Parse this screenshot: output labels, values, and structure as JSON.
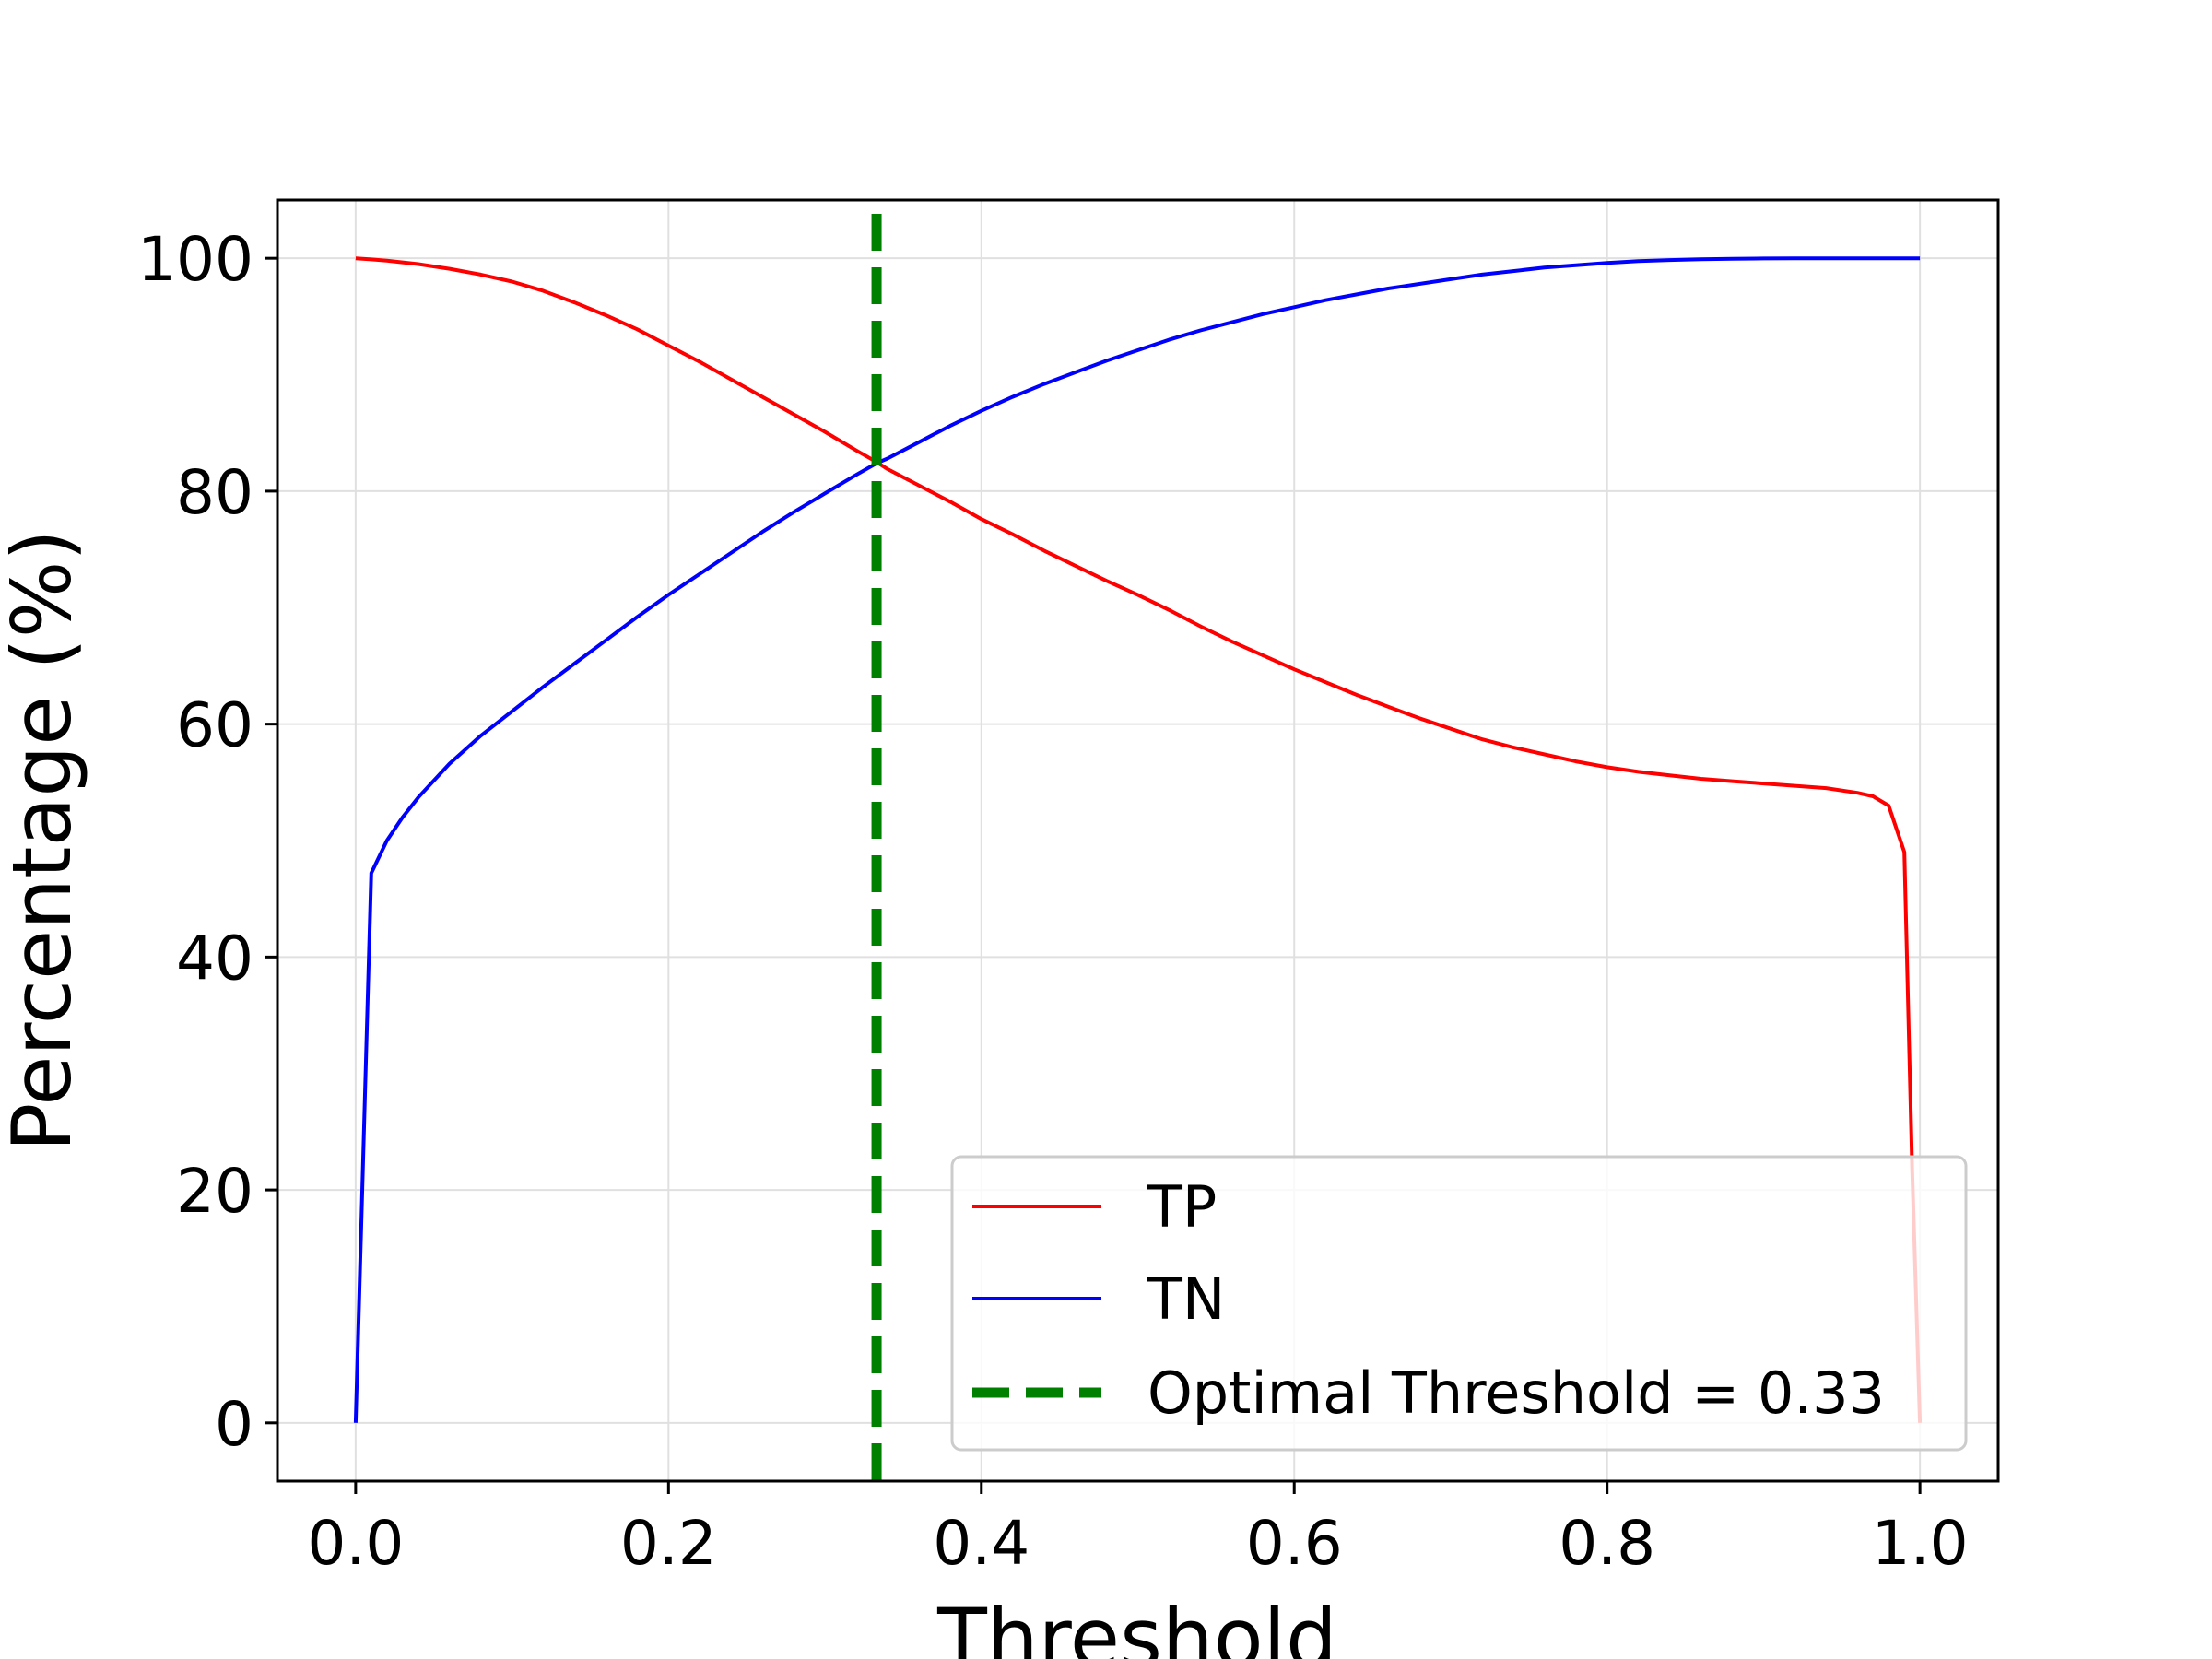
{
  "chart_data": {
    "type": "line",
    "title": "",
    "xlabel": "Threshold",
    "ylabel": "Percentage (%)",
    "xlim": [
      -0.05,
      1.05
    ],
    "ylim": [
      -5,
      105
    ],
    "xticks": [
      "0.0",
      "0.2",
      "0.4",
      "0.6",
      "0.8",
      "1.0"
    ],
    "yticks": [
      "0",
      "20",
      "40",
      "60",
      "80",
      "100"
    ],
    "grid": true,
    "legend_position": "lower-right",
    "series": [
      {
        "name": "TP",
        "color": "#ff0000",
        "x": [
          0.0,
          0.01,
          0.02,
          0.04,
          0.06,
          0.08,
          0.1,
          0.12,
          0.14,
          0.16,
          0.18,
          0.2,
          0.22,
          0.24,
          0.26,
          0.28,
          0.3,
          0.32,
          0.333,
          0.34,
          0.36,
          0.38,
          0.4,
          0.42,
          0.44,
          0.46,
          0.48,
          0.5,
          0.52,
          0.54,
          0.56,
          0.58,
          0.6,
          0.62,
          0.64,
          0.66,
          0.68,
          0.7,
          0.72,
          0.74,
          0.76,
          0.78,
          0.8,
          0.82,
          0.84,
          0.86,
          0.88,
          0.9,
          0.92,
          0.94,
          0.96,
          0.97,
          0.98,
          0.99,
          0.995,
          1.0
        ],
        "y": [
          100.0,
          99.9,
          99.8,
          99.5,
          99.1,
          98.6,
          98.0,
          97.2,
          96.2,
          95.1,
          93.9,
          92.5,
          91.1,
          89.6,
          88.1,
          86.6,
          85.1,
          83.5,
          82.5,
          81.9,
          80.5,
          79.1,
          77.6,
          76.3,
          74.9,
          73.6,
          72.3,
          71.1,
          69.8,
          68.4,
          67.1,
          65.9,
          64.7,
          63.6,
          62.5,
          61.5,
          60.5,
          59.6,
          58.7,
          58.0,
          57.4,
          56.8,
          56.3,
          55.9,
          55.6,
          55.3,
          55.1,
          54.9,
          54.7,
          54.5,
          54.1,
          53.8,
          53.0,
          49.0,
          22.0,
          0.0
        ]
      },
      {
        "name": "TN",
        "color": "#0000ff",
        "x": [
          0.0,
          0.01,
          0.02,
          0.03,
          0.04,
          0.06,
          0.08,
          0.1,
          0.12,
          0.14,
          0.16,
          0.18,
          0.2,
          0.22,
          0.24,
          0.26,
          0.28,
          0.3,
          0.32,
          0.333,
          0.34,
          0.36,
          0.38,
          0.4,
          0.42,
          0.44,
          0.46,
          0.48,
          0.5,
          0.52,
          0.54,
          0.56,
          0.58,
          0.6,
          0.62,
          0.64,
          0.66,
          0.68,
          0.7,
          0.72,
          0.74,
          0.76,
          0.78,
          0.8,
          0.82,
          0.84,
          0.86,
          0.88,
          0.9,
          0.92,
          0.94,
          0.96,
          0.98,
          1.0
        ],
        "y": [
          0.0,
          47.2,
          50.0,
          52.0,
          53.7,
          56.6,
          59.0,
          61.1,
          63.2,
          65.2,
          67.2,
          69.2,
          71.1,
          72.9,
          74.7,
          76.5,
          78.2,
          79.8,
          81.4,
          82.4,
          82.8,
          84.2,
          85.6,
          86.9,
          88.1,
          89.2,
          90.2,
          91.2,
          92.1,
          93.0,
          93.8,
          94.5,
          95.2,
          95.8,
          96.4,
          96.9,
          97.4,
          97.8,
          98.2,
          98.6,
          98.9,
          99.2,
          99.4,
          99.6,
          99.75,
          99.85,
          99.92,
          99.96,
          99.98,
          99.99,
          100.0,
          100.0,
          100.0,
          100.0
        ]
      }
    ],
    "vlines": [
      {
        "name": "Optimal Threshold = 0.33",
        "x": 0.333,
        "color": "#008000",
        "style": "dashed"
      }
    ]
  }
}
